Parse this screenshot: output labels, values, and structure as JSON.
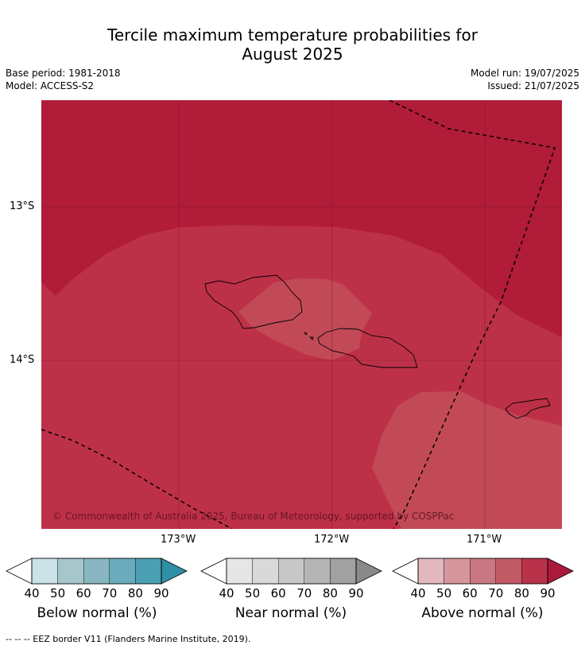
{
  "title": {
    "line1": "Tercile maximum temperature probabilities for",
    "line2": "August 2025"
  },
  "meta": {
    "base_period": "Base period: 1981-2018",
    "model": "Model: ACCESS-S2",
    "model_run": "Model run: 19/07/2025",
    "issued": "Issued: 21/07/2025"
  },
  "axes": {
    "lat_labels": [
      "13°S",
      "14°S"
    ],
    "lon_labels": [
      "173°W",
      "172°W",
      "171°W"
    ]
  },
  "copyright": "© Commonwealth of Australia 2025, Bureau of Meteorology, supported by COSPPac",
  "colors": {
    "above_80_90": "#b11c38",
    "above_70_80": "#bd3148",
    "above_60_70": "#c24a57",
    "coast": "#000000"
  },
  "colorbars": [
    {
      "label": "Below normal (%)",
      "ticks": [
        "40",
        "50",
        "60",
        "70",
        "80",
        "90"
      ],
      "colors": [
        "#ffffff",
        "#c9e1e7",
        "#a6c6cb",
        "#88b6c1",
        "#6aacbb",
        "#4a9fb2",
        "#2f8fa4"
      ]
    },
    {
      "label": "Near normal (%)",
      "ticks": [
        "40",
        "50",
        "60",
        "70",
        "80",
        "90"
      ],
      "colors": [
        "#ffffff",
        "#e6e6e6",
        "#d9d9d9",
        "#c8c8c8",
        "#b5b5b5",
        "#a1a1a1",
        "#8a8a8a"
      ]
    },
    {
      "label": "Above normal (%)",
      "ticks": [
        "40",
        "50",
        "60",
        "70",
        "80",
        "90"
      ],
      "colors": [
        "#ffffff",
        "#e2b7bd",
        "#d5969c",
        "#c97780",
        "#c25a66",
        "#b8324a",
        "#ab1a3a"
      ]
    }
  ],
  "footnote": "--  --  -- EEZ border V11 (Flanders Marine Institute, 2019)."
}
